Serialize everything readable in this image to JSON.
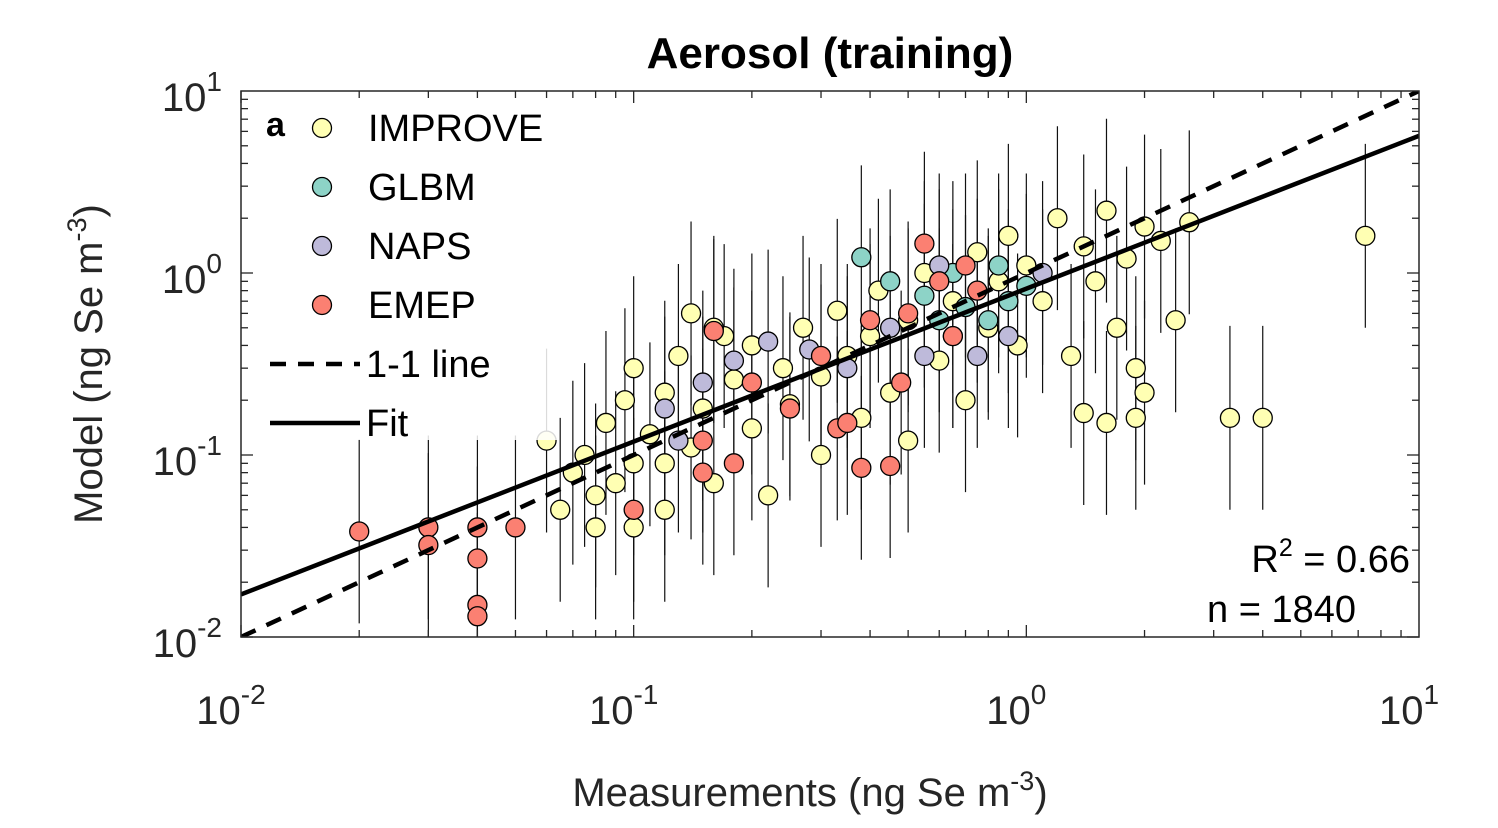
{
  "chart_data": {
    "type": "scatter",
    "title": "Aerosol (training)",
    "panel_label": "a",
    "xlabel": "Measurements (ng Se m",
    "xlabel_sup": "-3",
    "xlabel_end": ")",
    "ylabel": "Model (ng Se m",
    "ylabel_sup": "-3",
    "ylabel_end": ")",
    "xscale": "log",
    "yscale": "log",
    "xlim": [
      0.01,
      10
    ],
    "ylim": [
      0.01,
      10
    ],
    "grid": false,
    "legend_position": "top-left",
    "x_ticks": [
      {
        "base": "10",
        "exp": "-2",
        "value": 0.01
      },
      {
        "base": "10",
        "exp": "-1",
        "value": 0.1
      },
      {
        "base": "10",
        "exp": "0",
        "value": 1
      },
      {
        "base": "10",
        "exp": "1",
        "value": 10
      }
    ],
    "y_ticks": [
      {
        "base": "10",
        "exp": "-2",
        "value": 0.01
      },
      {
        "base": "10",
        "exp": "-1",
        "value": 0.1
      },
      {
        "base": "10",
        "exp": "0",
        "value": 1
      },
      {
        "base": "10",
        "exp": "1",
        "value": 10
      }
    ],
    "series": [
      {
        "name": "IMPROVE",
        "color": "#ffffb3",
        "points": [
          [
            0.06,
            0.12
          ],
          [
            0.065,
            0.05
          ],
          [
            0.07,
            0.08
          ],
          [
            0.075,
            0.1
          ],
          [
            0.08,
            0.06
          ],
          [
            0.085,
            0.15
          ],
          [
            0.09,
            0.07
          ],
          [
            0.095,
            0.2
          ],
          [
            0.1,
            0.09
          ],
          [
            0.1,
            0.3
          ],
          [
            0.11,
            0.13
          ],
          [
            0.12,
            0.05
          ],
          [
            0.12,
            0.22
          ],
          [
            0.13,
            0.35
          ],
          [
            0.14,
            0.11
          ],
          [
            0.15,
            0.18
          ],
          [
            0.16,
            0.07
          ],
          [
            0.17,
            0.45
          ],
          [
            0.18,
            0.26
          ],
          [
            0.2,
            0.14
          ],
          [
            0.2,
            0.4
          ],
          [
            0.22,
            0.06
          ],
          [
            0.24,
            0.3
          ],
          [
            0.25,
            0.19
          ],
          [
            0.27,
            0.5
          ],
          [
            0.3,
            0.1
          ],
          [
            0.3,
            0.27
          ],
          [
            0.33,
            0.62
          ],
          [
            0.35,
            0.35
          ],
          [
            0.38,
            0.16
          ],
          [
            0.4,
            0.45
          ],
          [
            0.42,
            0.8
          ],
          [
            0.45,
            0.22
          ],
          [
            0.5,
            0.55
          ],
          [
            0.5,
            0.12
          ],
          [
            0.55,
            1.0
          ],
          [
            0.6,
            0.33
          ],
          [
            0.65,
            0.7
          ],
          [
            0.7,
            0.2
          ],
          [
            0.75,
            1.3
          ],
          [
            0.8,
            0.5
          ],
          [
            0.85,
            0.9
          ],
          [
            0.9,
            1.6
          ],
          [
            0.95,
            0.4
          ],
          [
            1.0,
            1.1
          ],
          [
            1.1,
            0.7
          ],
          [
            1.2,
            2.0
          ],
          [
            1.3,
            0.35
          ],
          [
            1.4,
            1.4
          ],
          [
            1.5,
            0.9
          ],
          [
            1.6,
            2.2
          ],
          [
            1.7,
            0.5
          ],
          [
            1.8,
            1.2
          ],
          [
            1.9,
            0.3
          ],
          [
            2.0,
            1.8
          ],
          [
            2.2,
            1.5
          ],
          [
            2.4,
            0.55
          ],
          [
            2.6,
            1.9
          ],
          [
            1.9,
            0.16
          ],
          [
            2.0,
            0.22
          ],
          [
            1.4,
            0.17
          ],
          [
            1.6,
            0.15
          ],
          [
            3.3,
            0.16
          ],
          [
            4.0,
            0.16
          ],
          [
            7.3,
            1.6
          ],
          [
            0.08,
            0.04
          ],
          [
            0.1,
            0.04
          ],
          [
            0.12,
            0.09
          ],
          [
            0.14,
            0.6
          ],
          [
            0.16,
            0.5
          ]
        ]
      },
      {
        "name": "GLBM",
        "color": "#8dd3c7",
        "points": [
          [
            0.38,
            1.22
          ],
          [
            0.45,
            0.9
          ],
          [
            0.55,
            0.75
          ],
          [
            0.65,
            1.0
          ],
          [
            0.7,
            0.65
          ],
          [
            0.8,
            0.55
          ],
          [
            0.9,
            0.7
          ],
          [
            1.0,
            0.85
          ],
          [
            0.85,
            1.1
          ],
          [
            0.6,
            0.55
          ]
        ]
      },
      {
        "name": "NAPS",
        "color": "#bebada",
        "points": [
          [
            0.12,
            0.18
          ],
          [
            0.13,
            0.12
          ],
          [
            0.15,
            0.25
          ],
          [
            0.18,
            0.33
          ],
          [
            0.22,
            0.42
          ],
          [
            0.28,
            0.38
          ],
          [
            0.35,
            0.3
          ],
          [
            0.45,
            0.5
          ],
          [
            0.55,
            0.35
          ],
          [
            0.65,
            0.45
          ],
          [
            0.75,
            0.35
          ],
          [
            0.9,
            0.45
          ],
          [
            1.1,
            1.0
          ],
          [
            0.6,
            1.1
          ]
        ]
      },
      {
        "name": "EMEP",
        "color": "#fb8072",
        "points": [
          [
            0.02,
            0.038
          ],
          [
            0.03,
            0.04
          ],
          [
            0.03,
            0.032
          ],
          [
            0.04,
            0.04
          ],
          [
            0.04,
            0.027
          ],
          [
            0.04,
            0.015
          ],
          [
            0.04,
            0.013
          ],
          [
            0.05,
            0.04
          ],
          [
            0.1,
            0.05
          ],
          [
            0.15,
            0.08
          ],
          [
            0.15,
            0.12
          ],
          [
            0.18,
            0.09
          ],
          [
            0.2,
            0.25
          ],
          [
            0.25,
            0.18
          ],
          [
            0.3,
            0.35
          ],
          [
            0.33,
            0.14
          ],
          [
            0.38,
            0.085
          ],
          [
            0.45,
            0.087
          ],
          [
            0.4,
            0.55
          ],
          [
            0.5,
            0.6
          ],
          [
            0.55,
            1.45
          ],
          [
            0.6,
            0.9
          ],
          [
            0.7,
            1.1
          ],
          [
            0.48,
            0.25
          ],
          [
            0.35,
            0.15
          ],
          [
            0.16,
            0.48
          ],
          [
            0.65,
            0.45
          ],
          [
            0.75,
            0.8
          ]
        ]
      }
    ],
    "lines": [
      {
        "name": "1-1 line",
        "style": "dashed",
        "slope": 1,
        "intercept": 1
      },
      {
        "name": "Fit",
        "style": "solid",
        "slope": 0.84,
        "intercept": 0.82
      }
    ],
    "stats": {
      "r2_label": "R",
      "r2_sup": "2",
      "r2_value": " = 0.66",
      "n_text": "n = 1840"
    }
  }
}
